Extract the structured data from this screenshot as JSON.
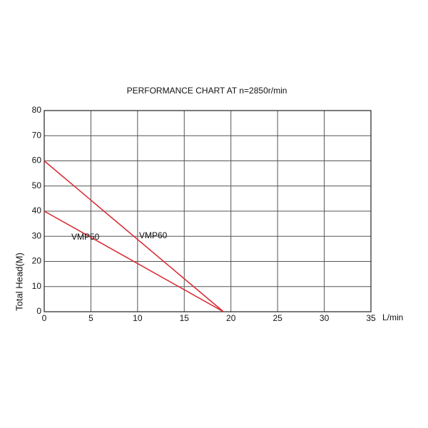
{
  "chart_data": {
    "type": "line",
    "title": "PERFORMANCE CHART AT n=2850r/min",
    "xlabel": "L/min",
    "ylabel": "Total Head(M)",
    "xlim": [
      0,
      35
    ],
    "xticks": [
      0,
      5,
      10,
      15,
      20,
      25,
      30,
      35
    ],
    "ylim": [
      0,
      80
    ],
    "yticks": [
      0,
      10,
      20,
      30,
      40,
      50,
      60,
      70,
      80
    ],
    "grid": true,
    "series": [
      {
        "name": "VMP50",
        "color": "#d8262e",
        "x": [
          0,
          19.2
        ],
        "values": [
          40,
          0
        ]
      },
      {
        "name": "VMP60",
        "color": "#d8262e",
        "x": [
          0,
          19.2
        ],
        "values": [
          60,
          0
        ]
      }
    ]
  }
}
